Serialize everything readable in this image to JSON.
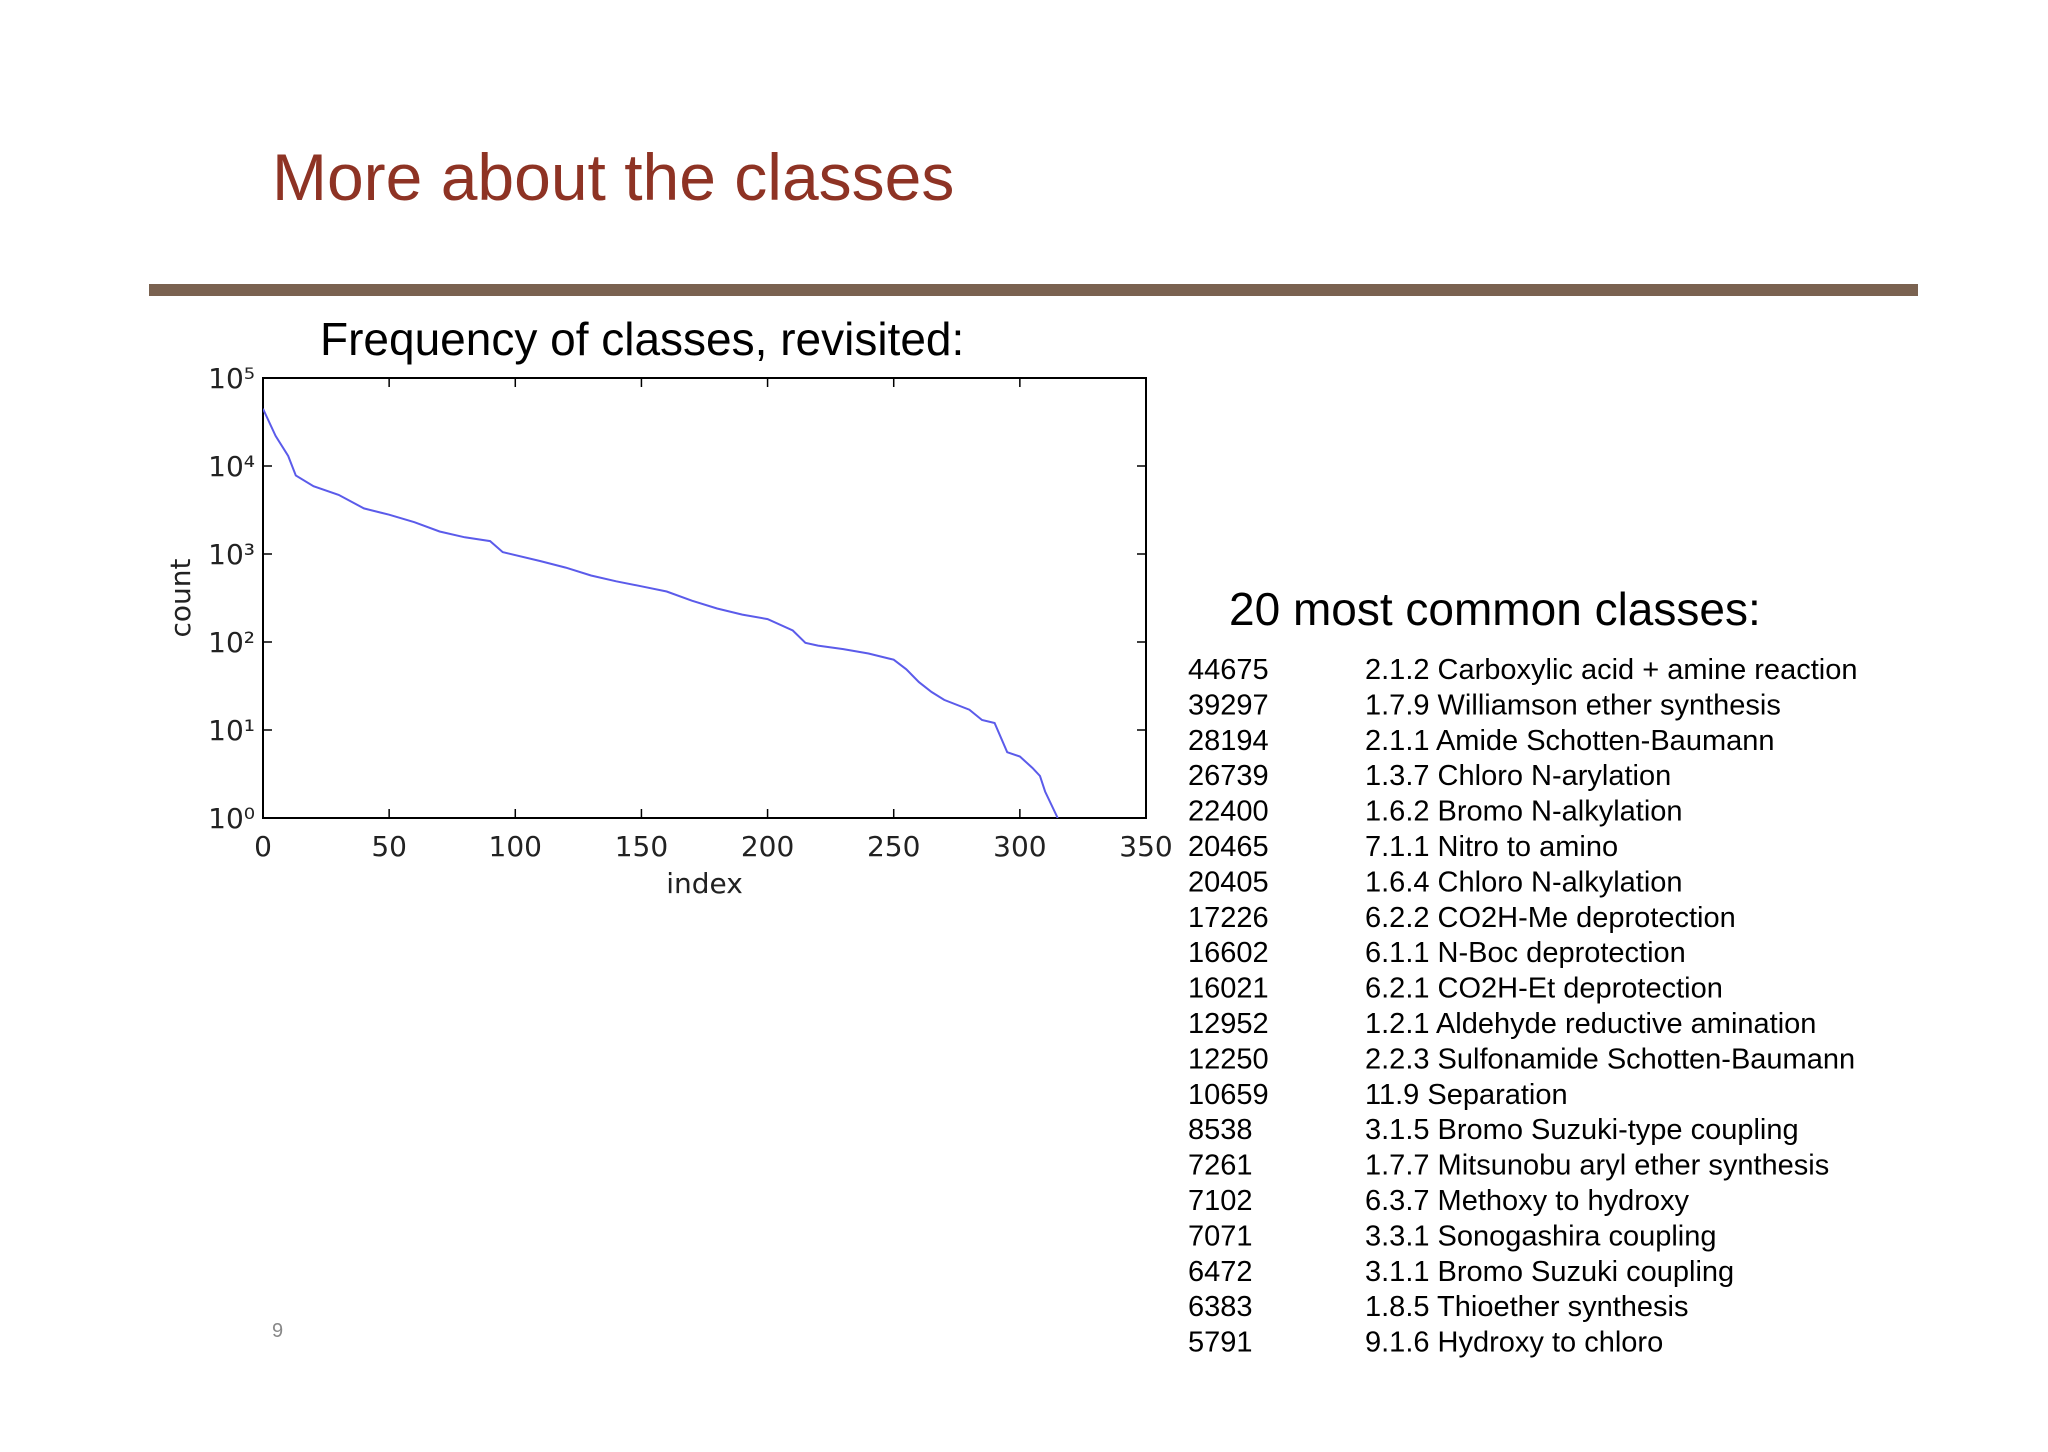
{
  "title": "More about the classes",
  "page_number": "9",
  "chart_data": {
    "type": "line",
    "subtitle": "Frequency of classes, revisited:",
    "x_label": "index",
    "y_label": "count",
    "x": [
      0,
      5,
      10,
      13,
      20,
      30,
      40,
      50,
      60,
      70,
      80,
      90,
      95,
      110,
      120,
      130,
      140,
      150,
      160,
      170,
      180,
      190,
      200,
      210,
      215,
      220,
      230,
      240,
      250,
      255,
      260,
      265,
      270,
      280,
      285,
      290,
      295,
      300,
      305,
      308,
      310,
      315
    ],
    "values": [
      44675,
      22000,
      13000,
      7800,
      5900,
      4700,
      3300,
      2800,
      2300,
      1800,
      1550,
      1400,
      1050,
      830,
      700,
      570,
      490,
      430,
      375,
      295,
      240,
      205,
      182,
      135,
      98,
      91,
      83,
      74,
      63,
      49,
      35,
      27,
      22,
      17,
      13,
      12,
      5.6,
      5,
      3.7,
      3,
      2,
      1
    ],
    "color": "#5b5bea",
    "log_y": true,
    "xlim": [
      0,
      350
    ],
    "xticks": [
      0,
      50,
      100,
      150,
      200,
      250,
      300,
      350
    ],
    "ylim": [
      1,
      100000
    ],
    "yticks": [
      {
        "value": 1,
        "label": "10⁰"
      },
      {
        "value": 10,
        "label": "10¹"
      },
      {
        "value": 100,
        "label": "10²"
      },
      {
        "value": 1000,
        "label": "10³"
      },
      {
        "value": 10000,
        "label": "10⁴"
      },
      {
        "value": 100000,
        "label": "10⁵"
      }
    ]
  },
  "table": {
    "title": "20 most common classes:",
    "rows": [
      [
        44675,
        "2.1.2 Carboxylic acid + amine reaction"
      ],
      [
        39297,
        "1.7.9 Williamson ether synthesis"
      ],
      [
        28194,
        "2.1.1 Amide Schotten-Baumann"
      ],
      [
        26739,
        "1.3.7 Chloro N-arylation"
      ],
      [
        22400,
        "1.6.2 Bromo N-alkylation"
      ],
      [
        20465,
        "7.1.1 Nitro to amino"
      ],
      [
        20405,
        "1.6.4 Chloro N-alkylation"
      ],
      [
        17226,
        "6.2.2 CO2H-Me deprotection"
      ],
      [
        16602,
        "6.1.1 N-Boc deprotection"
      ],
      [
        16021,
        "6.2.1 CO2H-Et deprotection"
      ],
      [
        12952,
        "1.2.1 Aldehyde reductive amination"
      ],
      [
        12250,
        "2.2.3 Sulfonamide Schotten-Baumann"
      ],
      [
        10659,
        "11.9 Separation"
      ],
      [
        8538,
        "3.1.5 Bromo Suzuki-type coupling"
      ],
      [
        7261,
        "1.7.7 Mitsunobu aryl ether synthesis"
      ],
      [
        7102,
        "6.3.7 Methoxy to hydroxy"
      ],
      [
        7071,
        "3.3.1 Sonogashira coupling"
      ],
      [
        6472,
        "3.1.1 Bromo Suzuki coupling"
      ],
      [
        6383,
        "1.8.5 Thioether synthesis"
      ],
      [
        5791,
        "9.1.6 Hydroxy to chloro"
      ]
    ]
  }
}
